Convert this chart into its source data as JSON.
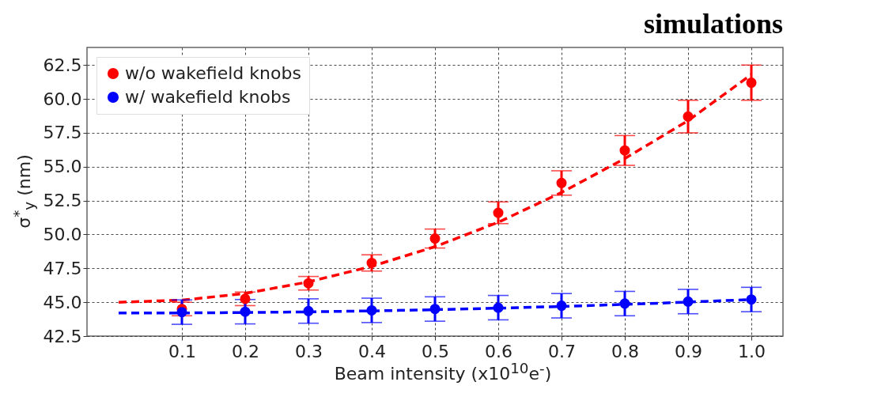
{
  "chart_data": {
    "type": "scatter",
    "title": "simulations",
    "xlabel": "Beam intensity (x10$^{10}$e$^{-}$)",
    "ylabel": "σ$^{*}$$_{y}$ (nm)",
    "x": [
      0.1,
      0.2,
      0.3,
      0.4,
      0.5,
      0.6,
      0.7,
      0.8,
      0.9,
      1.0
    ],
    "series": [
      {
        "name": "w/o wakefield knobs",
        "color": "#ff0000",
        "values": [
          44.5,
          45.25,
          46.4,
          47.9,
          49.7,
          51.6,
          53.8,
          56.2,
          58.7,
          61.2
        ],
        "errors": [
          0.5,
          0.5,
          0.5,
          0.6,
          0.7,
          0.8,
          0.9,
          1.1,
          1.2,
          1.3
        ],
        "marker": "circle"
      },
      {
        "name": "w/ wakefield knobs",
        "color": "#0000ff",
        "values": [
          44.27,
          44.3,
          44.35,
          44.4,
          44.5,
          44.6,
          44.74,
          44.9,
          45.05,
          45.2
        ],
        "errors": [
          0.9,
          0.9,
          0.9,
          0.9,
          0.9,
          0.9,
          0.9,
          0.9,
          0.9,
          0.9
        ],
        "marker": "circle"
      },
      {
        "type": "line",
        "color": "#ff0000",
        "line_style": "dashed",
        "marker": "none",
        "x": [
          0,
          0.1,
          0.2,
          0.3,
          0.4,
          0.5,
          0.6,
          0.7,
          0.8,
          0.9,
          1.0
        ],
        "values": [
          45.0,
          45.15,
          45.65,
          46.5,
          47.65,
          49.1,
          50.9,
          53.1,
          55.6,
          58.4,
          61.8
        ]
      },
      {
        "type": "line",
        "color": "#0000ff",
        "line_style": "dashed",
        "marker": "none",
        "x": [
          0,
          0.1,
          0.2,
          0.3,
          0.4,
          0.5,
          0.6,
          0.7,
          0.8,
          0.9,
          1.0
        ],
        "values": [
          44.2,
          44.21,
          44.24,
          44.29,
          44.36,
          44.45,
          44.56,
          44.69,
          44.84,
          45.01,
          45.2
        ]
      }
    ],
    "xlim": [
      -0.05,
      1.05
    ],
    "xticks": [
      0.1,
      0.2,
      0.3,
      0.4,
      0.5,
      0.6,
      0.7,
      0.8,
      0.9,
      {
        "value": 1.0,
        "label": "1.0"
      }
    ],
    "ylim": [
      42.5,
      63.8
    ],
    "yticks": [
      42.5,
      {
        "value": 45,
        "label": "45.0"
      },
      47.5,
      {
        "value": 50,
        "label": "50.0"
      },
      52.5,
      {
        "value": 55,
        "label": "55.0"
      },
      57.5,
      {
        "value": 60,
        "label": "60.0"
      },
      62.5
    ],
    "grid": true,
    "legend": "top left"
  }
}
